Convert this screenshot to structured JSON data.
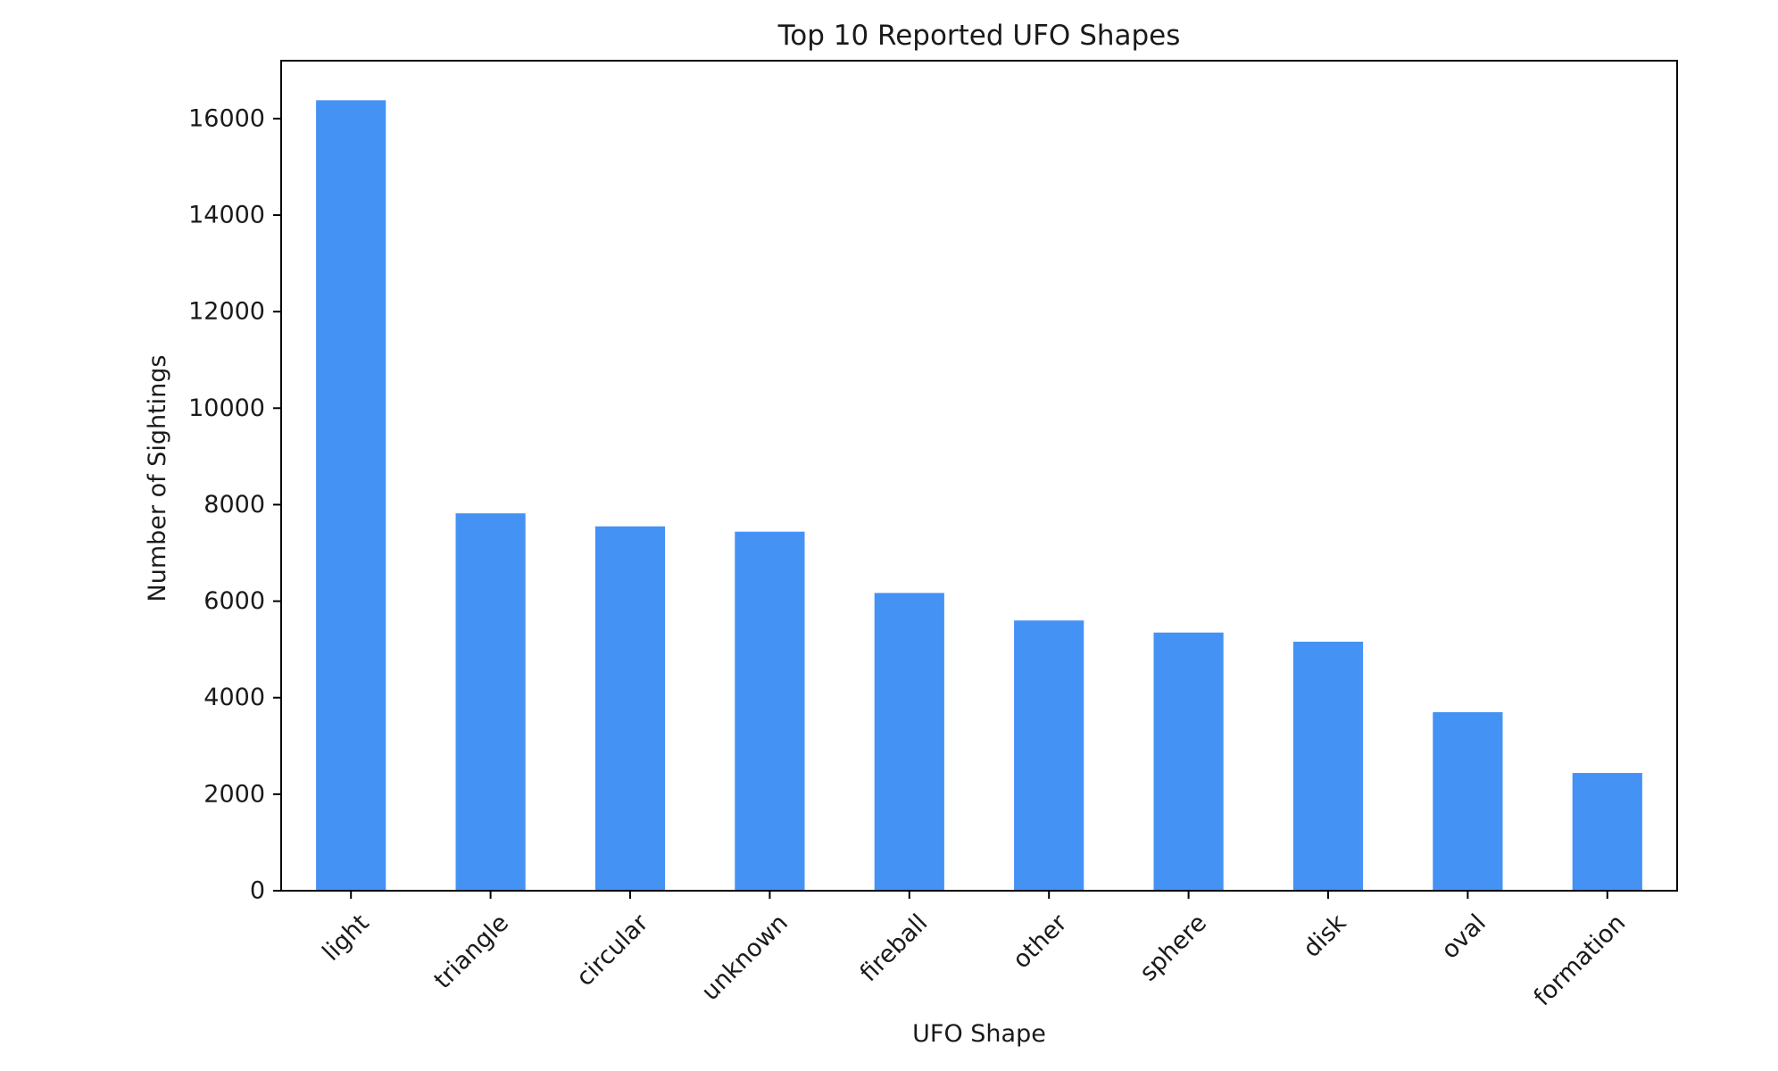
{
  "chart_data": {
    "type": "bar",
    "title": "Top 10 Reported UFO Shapes",
    "xlabel": "UFO Shape",
    "ylabel": "Number of Sightings",
    "categories": [
      "light",
      "triangle",
      "circular",
      "unknown",
      "fireball",
      "other",
      "sphere",
      "disk",
      "oval",
      "formation"
    ],
    "values": [
      16380,
      7820,
      7550,
      7440,
      6170,
      5600,
      5350,
      5160,
      3700,
      2440
    ],
    "ylim": [
      0,
      17200
    ],
    "yticks": [
      0,
      2000,
      4000,
      6000,
      8000,
      10000,
      12000,
      14000,
      16000
    ],
    "ytick_labels": [
      "0",
      "2000",
      "4000",
      "6000",
      "8000",
      "10000",
      "12000",
      "14000",
      "16000"
    ],
    "bar_color": "#4592f5",
    "grid": false,
    "legend": false,
    "xtick_rotation_deg": 45
  }
}
